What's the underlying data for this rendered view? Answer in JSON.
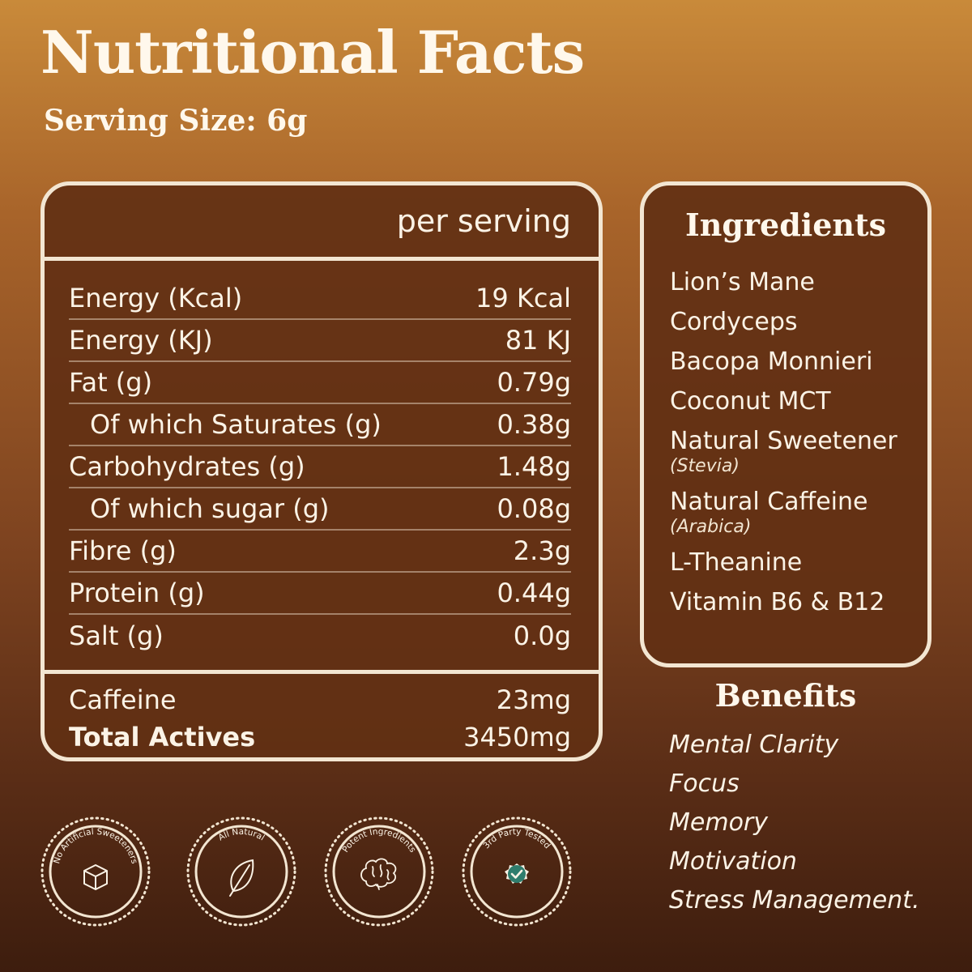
{
  "header": {
    "title": "Nutritional Facts",
    "serving_size": "Serving Size: 6g"
  },
  "nutrition": {
    "column_header": "per serving",
    "rows": [
      {
        "label": "Energy (Kcal)",
        "value": "19 Kcal",
        "indent": false
      },
      {
        "label": "Energy (KJ)",
        "value": "81 KJ",
        "indent": false
      },
      {
        "label": "Fat (g)",
        "value": "0.79g",
        "indent": false
      },
      {
        "label": "Of which Saturates (g)",
        "value": "0.38g",
        "indent": true
      },
      {
        "label": "Carbohydrates (g)",
        "value": "1.48g",
        "indent": false
      },
      {
        "label": "Of which sugar (g)",
        "value": "0.08g",
        "indent": true
      },
      {
        "label": "Fibre (g)",
        "value": "2.3g",
        "indent": false
      },
      {
        "label": "Protein (g)",
        "value": "0.44g",
        "indent": false
      },
      {
        "label": "Salt (g)",
        "value": "0.0g",
        "indent": false
      }
    ],
    "extra_rows": [
      {
        "label": "Caffeine",
        "value": "23mg",
        "bold": false
      },
      {
        "label": "Total Actives",
        "value": "3450mg",
        "bold": true
      }
    ]
  },
  "ingredients": {
    "heading": "Ingredients",
    "items": [
      {
        "name": "Lion’s Mane",
        "note": ""
      },
      {
        "name": "Cordyceps",
        "note": ""
      },
      {
        "name": "Bacopa Monnieri",
        "note": ""
      },
      {
        "name": "Coconut MCT",
        "note": ""
      },
      {
        "name": "Natural Sweetener",
        "note": "(Stevia)"
      },
      {
        "name": "Natural Caffeine",
        "note": "(Arabica)"
      },
      {
        "name": "L-Theanine",
        "note": ""
      },
      {
        "name": "Vitamin B6 & B12",
        "note": ""
      }
    ]
  },
  "benefits": {
    "heading": "Benefits",
    "items": [
      "Mental Clarity",
      "Focus",
      "Memory",
      "Motivation",
      "Stress Management."
    ]
  },
  "badges": [
    {
      "text": "No Artificial Sweeteners",
      "icon": "sugar-cube-icon"
    },
    {
      "text": "All Natural",
      "icon": "leaf-icon"
    },
    {
      "text": "Potent Ingredients",
      "icon": "brain-icon"
    },
    {
      "text": "3rd Party Tested",
      "icon": "check-badge-icon"
    }
  ],
  "colors": {
    "panel_border": "#f3e6d2",
    "panel_fill": "#623014",
    "text": "#fbf3e6",
    "check_badge": "#2f7d6d"
  }
}
